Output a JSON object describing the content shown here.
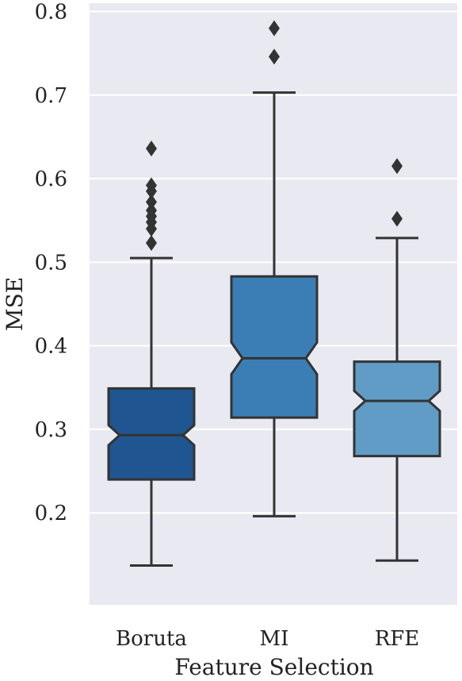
{
  "chart_data": {
    "type": "boxplot",
    "title": "",
    "xlabel": "Feature Selection",
    "ylabel": "MSE",
    "ylim": [
      0.09,
      0.81
    ],
    "yticks": [
      0.2,
      0.3,
      0.4,
      0.5,
      0.6,
      0.7,
      0.8
    ],
    "ytick_labels": [
      "0.2",
      "0.3",
      "0.4",
      "0.5",
      "0.6",
      "0.7",
      "0.8"
    ],
    "grid": true,
    "notched": true,
    "categories": [
      "Boruta",
      "MI",
      "RFE"
    ],
    "boxes": [
      {
        "category": "Boruta",
        "whisker_low": 0.137,
        "q1": 0.24,
        "median": 0.293,
        "q3": 0.349,
        "whisker_high": 0.505,
        "notch_low": 0.281,
        "notch_high": 0.305,
        "outliers": [
          0.523,
          0.54,
          0.548,
          0.555,
          0.562,
          0.572,
          0.585,
          0.592,
          0.636
        ],
        "color": "#1f5591"
      },
      {
        "category": "MI",
        "whisker_low": 0.196,
        "q1": 0.314,
        "median": 0.385,
        "q3": 0.483,
        "whisker_high": 0.703,
        "notch_low": 0.366,
        "notch_high": 0.404,
        "outliers": [
          0.746,
          0.78
        ],
        "color": "#3a7eb5"
      },
      {
        "category": "RFE",
        "whisker_low": 0.143,
        "q1": 0.268,
        "median": 0.334,
        "q3": 0.381,
        "whisker_high": 0.529,
        "notch_low": 0.322,
        "notch_high": 0.346,
        "outliers": [
          0.552,
          0.615
        ],
        "color": "#609cc5"
      }
    ]
  },
  "colors": {
    "plot_background": "#e9e9f1",
    "grid": "#ffffff",
    "line": "#333333",
    "text": "#222222"
  }
}
